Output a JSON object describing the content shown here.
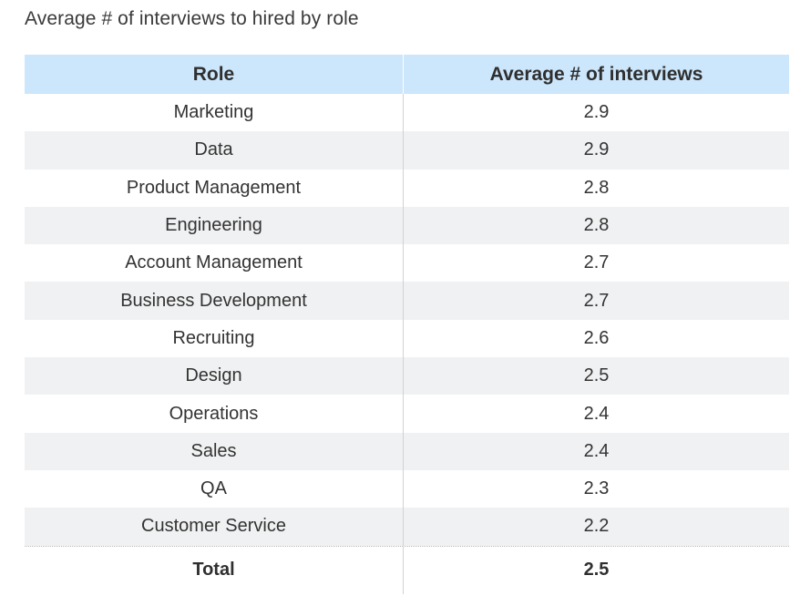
{
  "title": "Average # of interviews to hired by role",
  "chart_data": {
    "type": "table",
    "columns": [
      "Role",
      "Average # of interviews"
    ],
    "rows": [
      {
        "role": "Marketing",
        "value": "2.9"
      },
      {
        "role": "Data",
        "value": "2.9"
      },
      {
        "role": "Product Management",
        "value": "2.8"
      },
      {
        "role": "Engineering",
        "value": "2.8"
      },
      {
        "role": "Account Management",
        "value": "2.7"
      },
      {
        "role": "Business Development",
        "value": "2.7"
      },
      {
        "role": "Recruiting",
        "value": "2.6"
      },
      {
        "role": "Design",
        "value": "2.5"
      },
      {
        "role": "Operations",
        "value": "2.4"
      },
      {
        "role": "Sales",
        "value": "2.4"
      },
      {
        "role": "QA",
        "value": "2.3"
      },
      {
        "role": "Customer Service",
        "value": "2.2"
      }
    ],
    "total": {
      "role": "Total",
      "value": "2.5"
    }
  },
  "colors": {
    "header_background": "#cce6fb",
    "alternate_row_background": "#f0f1f2",
    "text": "#333333"
  }
}
